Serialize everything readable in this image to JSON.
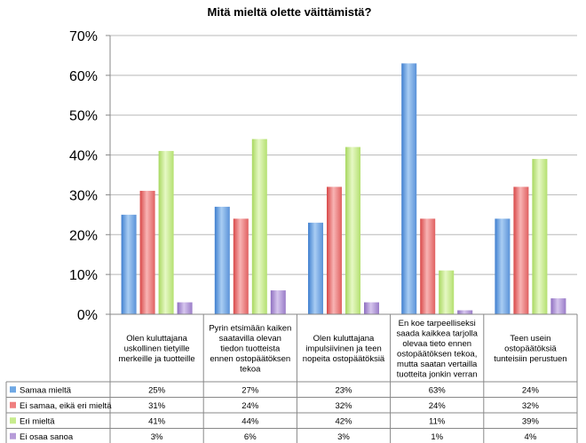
{
  "chart_data": {
    "type": "bar",
    "title": "Mitä mieltä olette väittämistä?",
    "ylim": [
      0,
      70
    ],
    "yticks": [
      "0%",
      "10%",
      "20%",
      "30%",
      "40%",
      "50%",
      "60%",
      "70%"
    ],
    "grid": true,
    "legend": "table-left",
    "categories": [
      [
        "Olen kuluttajana",
        "uskollinen tietyille",
        "merkeille ja tuotteille"
      ],
      [
        "Pyrin etsimään kaiken",
        "saatavilla olevan",
        "tiedon tuotteista",
        "ennen ostopäätöksen",
        "tekoa"
      ],
      [
        "Olen kuluttajana",
        "impulsiivinen ja teen",
        "nopeita ostopäätöksiä"
      ],
      [
        "En koe tarpeelliseksi",
        "saada kaikkea tarjolla",
        "olevaa tieto ennen",
        "ostopäätöksen tekoa,",
        "mutta saatan vertailla",
        "tuotteita jonkin verran"
      ],
      [
        "Teen usein",
        "ostopäätöksiä",
        "tunteisiin perustuen"
      ]
    ],
    "series": [
      {
        "name": "Samaa mieltä",
        "values": [
          25,
          27,
          23,
          63,
          24
        ],
        "labels": [
          "25%",
          "27%",
          "23%",
          "63%",
          "24%"
        ],
        "color": "#6fa8e4"
      },
      {
        "name": "Ei samaa, eikä eri mieltä",
        "values": [
          31,
          24,
          32,
          24,
          32
        ],
        "labels": [
          "31%",
          "24%",
          "32%",
          "24%",
          "32%"
        ],
        "color": "#ef7f7f"
      },
      {
        "name": "Eri mieltä",
        "values": [
          41,
          44,
          42,
          11,
          39
        ],
        "labels": [
          "41%",
          "44%",
          "42%",
          "11%",
          "39%"
        ],
        "color": "#c8ec8e"
      },
      {
        "name": "Ei osaa sanoa",
        "values": [
          3,
          6,
          3,
          1,
          4
        ],
        "labels": [
          "3%",
          "6%",
          "3%",
          "1%",
          "4%"
        ],
        "color": "#b69bd8"
      }
    ]
  }
}
